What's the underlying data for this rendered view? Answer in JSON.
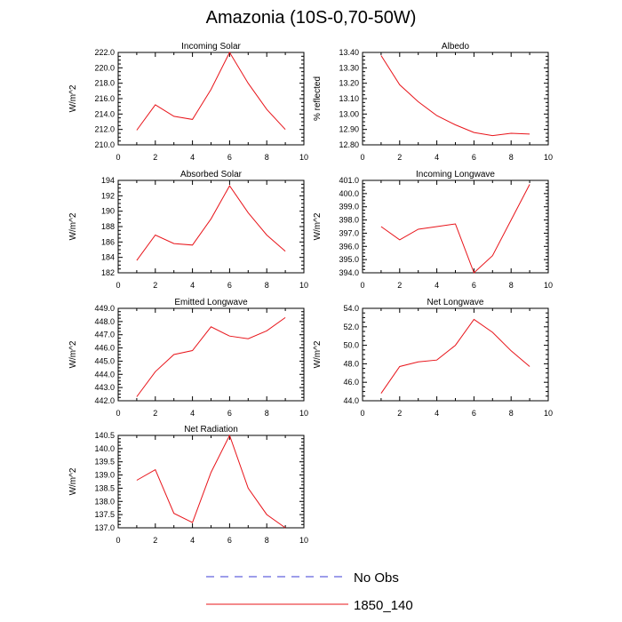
{
  "title": "Amazonia (10S-0,70-50W)",
  "legend": {
    "items": [
      {
        "label": "No Obs",
        "color": "#3b3bd6",
        "dash": true
      },
      {
        "label": "1850_140",
        "color": "#e8141a",
        "dash": false
      }
    ]
  },
  "chart_data": [
    {
      "type": "line",
      "title": "Incoming Solar",
      "ylabel": "W/m^2",
      "xlim": [
        0,
        10
      ],
      "xticks": [
        "0",
        "2",
        "4",
        "6",
        "8",
        "10"
      ],
      "ylim": [
        210,
        222
      ],
      "yticks": [
        "210.0",
        "212.0",
        "214.0",
        "216.0",
        "218.0",
        "220.0",
        "222.0"
      ],
      "series": [
        {
          "name": "1850_140",
          "color": "#e8141a",
          "x": [
            1,
            2,
            3,
            4,
            5,
            6,
            7,
            8,
            9
          ],
          "values": [
            211.9,
            215.2,
            213.7,
            213.3,
            217.2,
            222.0,
            218.0,
            214.6,
            212.0
          ]
        }
      ]
    },
    {
      "type": "line",
      "title": "Albedo",
      "ylabel": "% reflected",
      "xlim": [
        0,
        10
      ],
      "xticks": [
        "0",
        "2",
        "4",
        "6",
        "8",
        "10"
      ],
      "ylim": [
        12.8,
        13.4
      ],
      "yticks": [
        "12.80",
        "12.90",
        "13.00",
        "13.10",
        "13.20",
        "13.30",
        "13.40"
      ],
      "series": [
        {
          "name": "1850_140",
          "color": "#e8141a",
          "x": [
            1,
            2,
            3,
            4,
            5,
            6,
            7,
            8,
            9
          ],
          "values": [
            13.38,
            13.19,
            13.08,
            12.99,
            12.93,
            12.88,
            12.86,
            12.875,
            12.87
          ]
        }
      ]
    },
    {
      "type": "line",
      "title": "Absorbed Solar",
      "ylabel": "W/m^2",
      "xlim": [
        0,
        10
      ],
      "xticks": [
        "0",
        "2",
        "4",
        "6",
        "8",
        "10"
      ],
      "ylim": [
        182,
        194
      ],
      "yticks": [
        "182",
        "184",
        "186",
        "188",
        "190",
        "192",
        "194"
      ],
      "series": [
        {
          "name": "1850_140",
          "color": "#e8141a",
          "x": [
            1,
            2,
            3,
            4,
            5,
            6,
            7,
            8,
            9
          ],
          "values": [
            183.6,
            186.9,
            185.8,
            185.6,
            189.0,
            193.3,
            189.8,
            186.9,
            184.8
          ]
        }
      ]
    },
    {
      "type": "line",
      "title": "Incoming Longwave",
      "ylabel": "W/m^2",
      "xlim": [
        0,
        10
      ],
      "xticks": [
        "0",
        "2",
        "4",
        "6",
        "8",
        "10"
      ],
      "ylim": [
        394,
        401
      ],
      "yticks": [
        "394.0",
        "395.0",
        "396.0",
        "397.0",
        "398.0",
        "399.0",
        "400.0",
        "401.0"
      ],
      "series": [
        {
          "name": "1850_140",
          "color": "#e8141a",
          "x": [
            1,
            2,
            3,
            4,
            5,
            6,
            7,
            8,
            9
          ],
          "values": [
            397.5,
            396.5,
            397.3,
            397.5,
            397.7,
            394.0,
            395.3,
            398.0,
            400.7
          ]
        }
      ]
    },
    {
      "type": "line",
      "title": "Emitted Longwave",
      "ylabel": "W/m^2",
      "xlim": [
        0,
        10
      ],
      "xticks": [
        "0",
        "2",
        "4",
        "6",
        "8",
        "10"
      ],
      "ylim": [
        442,
        449
      ],
      "yticks": [
        "442.0",
        "443.0",
        "444.0",
        "445.0",
        "446.0",
        "447.0",
        "448.0",
        "449.0"
      ],
      "series": [
        {
          "name": "1850_140",
          "color": "#e8141a",
          "x": [
            1,
            2,
            3,
            4,
            5,
            6,
            7,
            8,
            9
          ],
          "values": [
            442.3,
            444.2,
            445.5,
            445.8,
            447.6,
            446.9,
            446.7,
            447.3,
            448.3
          ]
        }
      ]
    },
    {
      "type": "line",
      "title": "Net Longwave",
      "ylabel": "W/m^2",
      "xlim": [
        0,
        10
      ],
      "xticks": [
        "0",
        "2",
        "4",
        "6",
        "8",
        "10"
      ],
      "ylim": [
        44,
        54
      ],
      "yticks": [
        "44.0",
        "46.0",
        "48.0",
        "50.0",
        "52.0",
        "54.0"
      ],
      "series": [
        {
          "name": "1850_140",
          "color": "#e8141a",
          "x": [
            1,
            2,
            3,
            4,
            5,
            6,
            7,
            8,
            9
          ],
          "values": [
            44.8,
            47.7,
            48.2,
            48.4,
            50.0,
            52.8,
            51.4,
            49.4,
            47.7
          ]
        }
      ]
    },
    {
      "type": "line",
      "title": "Net Radiation",
      "ylabel": "W/m^2",
      "xlim": [
        0,
        10
      ],
      "xticks": [
        "0",
        "2",
        "4",
        "6",
        "8",
        "10"
      ],
      "ylim": [
        137,
        140.5
      ],
      "yticks": [
        "137.0",
        "137.5",
        "138.0",
        "138.5",
        "139.0",
        "139.5",
        "140.0",
        "140.5"
      ],
      "series": [
        {
          "name": "1850_140",
          "color": "#e8141a",
          "x": [
            1,
            2,
            3,
            4,
            5,
            6,
            7,
            8,
            9
          ],
          "values": [
            138.8,
            139.2,
            137.55,
            137.2,
            139.1,
            140.5,
            138.5,
            137.5,
            137.0
          ]
        }
      ]
    }
  ]
}
